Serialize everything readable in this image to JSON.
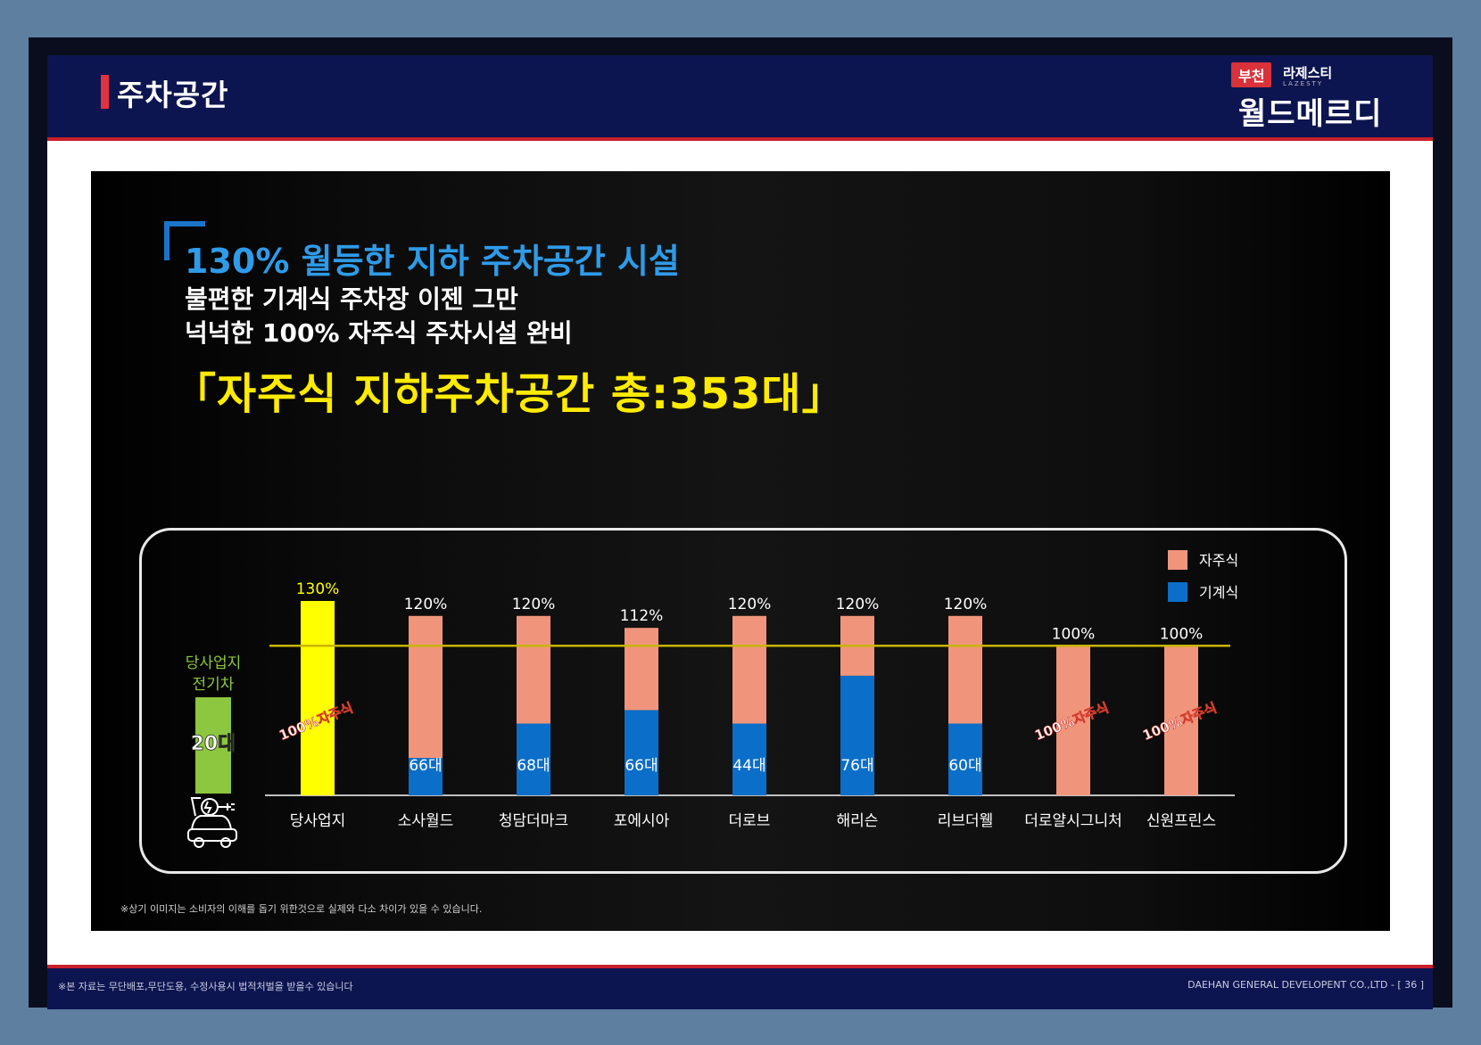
{
  "header": {
    "title": "주차공간"
  },
  "logo": {
    "city": "부천",
    "brand": "라제스티",
    "brand_sub": "LAZESTY",
    "name": "월드메르디앙"
  },
  "main": {
    "headline": "130% 월등한 지하 주차공간 시설",
    "subline1": "불편한 기계식 주차장 이젠 그만",
    "subline2": "넉넉한 100% 자주식 주차시설 완비",
    "total": "「자주식 지하주차공간 총:353대」",
    "note": "※상기 이미지는 소비자의 이해를 돕기 위한것으로 실제와 다소 차이가 있을 수 있습니다."
  },
  "footer": {
    "left": "※본 자료는 무단배포,무단도용, 수정사용시 법적처벌을 받을수 있습니다",
    "right": "DAEHAN GENERAL DEVELOPENT CO.,LTD - [ 36 ]"
  },
  "colors": {
    "self": "#f0957c",
    "mech": "#0b6ec9",
    "highlight": "#ffff00",
    "baseline": "#c8b400",
    "ev": "#8dc63f"
  },
  "chart_data": {
    "type": "bar",
    "stacked": true,
    "categories": [
      "당사업지",
      "소사월드",
      "청담더마크",
      "포에시아",
      "더로브",
      "해리슨",
      "리브더웰",
      "더로얄시그니처",
      "신원프린스"
    ],
    "series": [
      {
        "name": "자주식",
        "values": [
          130,
          95,
          72,
          55,
          72,
          40,
          72,
          100,
          100
        ]
      },
      {
        "name": "기계식",
        "values": [
          0,
          25,
          48,
          57,
          48,
          80,
          48,
          0,
          0
        ]
      }
    ],
    "totals": [
      130,
      120,
      120,
      112,
      120,
      120,
      120,
      100,
      100
    ],
    "total_labels": [
      "130%",
      "120%",
      "120%",
      "112%",
      "120%",
      "120%",
      "120%",
      "100%",
      "100%"
    ],
    "mech_labels": [
      "",
      "66대",
      "68대",
      "66대",
      "44대",
      "76대",
      "60대",
      "",
      ""
    ],
    "diag_labels": [
      "100%자주식",
      "",
      "",
      "",
      "",
      "",
      "",
      "100%자주식",
      "100%자주식"
    ],
    "reference_line": 100,
    "ylim": [
      0,
      130
    ],
    "legend": [
      "자주식",
      "기계식"
    ],
    "legend_position": "top-right",
    "ev": {
      "label_line1": "당사업지",
      "label_line2": "전기차",
      "value": "20대"
    }
  }
}
